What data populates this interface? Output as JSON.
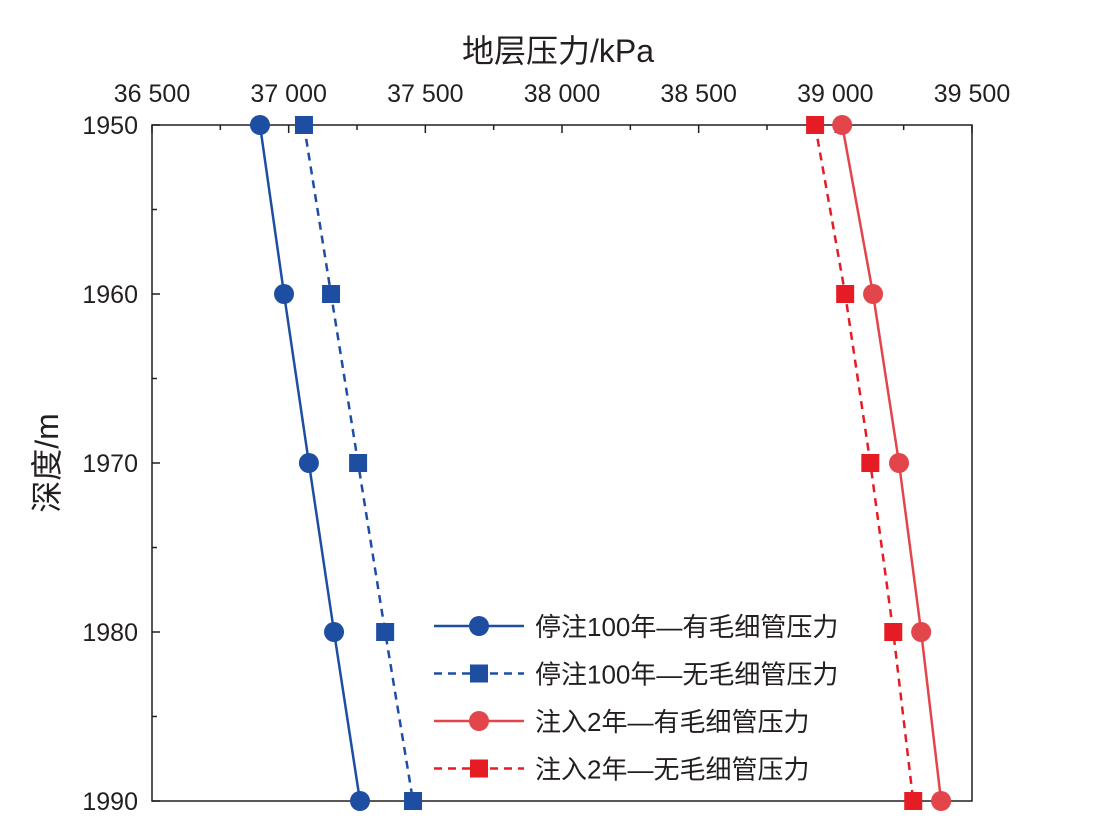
{
  "chart_data": {
    "type": "line",
    "xlabel": "地层压力/kPa",
    "ylabel": "深度/m",
    "xlim": [
      36500,
      39500
    ],
    "ylim": [
      1950,
      1990
    ],
    "x_axis_position": "top",
    "y_inverted": true,
    "xticks": [
      36500,
      37000,
      37500,
      38000,
      38500,
      39000,
      39500
    ],
    "xtick_labels": [
      "36 500",
      "37 000",
      "37 500",
      "38 000",
      "38 500",
      "39 000",
      "39 500"
    ],
    "yticks": [
      1950,
      1960,
      1970,
      1980,
      1990
    ],
    "ytick_labels": [
      "1950",
      "1960",
      "1970",
      "1980",
      "1990"
    ],
    "grid": false,
    "legend_position": "bottom-center",
    "depth": [
      1950,
      1960,
      1970,
      1980,
      1990
    ],
    "series": [
      {
        "name": "停注100年—有毛细管压力",
        "values": [
          36895,
          36983,
          37074,
          37166,
          37261
        ],
        "color": "#1d4ea2",
        "marker": "circle",
        "dash": false
      },
      {
        "name": "停注100年—无毛细管压力",
        "values": [
          37056,
          37155,
          37254,
          37353,
          37455
        ],
        "color": "#1d4ea2",
        "marker": "square",
        "dash": true
      },
      {
        "name": "注入2年—有毛细管压力",
        "values": [
          39025,
          39138,
          39233,
          39314,
          39387
        ],
        "color": "#e2454a",
        "marker": "circle",
        "dash": false
      },
      {
        "name": "注入2年—无毛细管压力",
        "values": [
          38926,
          39036,
          39128,
          39212,
          39285
        ],
        "color": "#e51c24",
        "marker": "square",
        "dash": true
      }
    ]
  }
}
